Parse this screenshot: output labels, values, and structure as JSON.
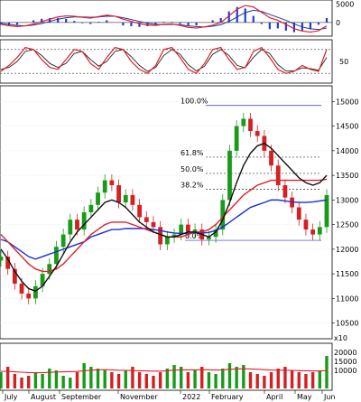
{
  "chart_data": {
    "type": "candlestick",
    "x_labels": [
      "July",
      "August",
      "September",
      "November",
      "2022",
      "February",
      "April",
      "May",
      "Jun"
    ],
    "panels": {
      "macd": {
        "y_ticks": [
          5000,
          0
        ],
        "macd_line": [
          -500,
          -900,
          -1100,
          -900,
          -400,
          200,
          900,
          1500,
          1800,
          1700,
          1400,
          1200,
          1600,
          2000,
          1700,
          900,
          300,
          -300,
          -700,
          -800,
          -500,
          -400,
          -800,
          -1300,
          -1500,
          -1200,
          -700,
          0,
          1800,
          3600,
          4600,
          4200,
          2800,
          1300,
          600,
          -500,
          -1700,
          -2300,
          -2600,
          -2200,
          -900
        ],
        "signal_line": [
          -200,
          -500,
          -800,
          -900,
          -700,
          -300,
          300,
          900,
          1300,
          1500,
          1500,
          1400,
          1500,
          1700,
          1700,
          1300,
          800,
          300,
          -200,
          -500,
          -600,
          -500,
          -600,
          -900,
          -1100,
          -1200,
          -1000,
          -600,
          300,
          1500,
          2700,
          3300,
          3000,
          2200,
          1400,
          600,
          -400,
          -1200,
          -1700,
          -1900,
          -1500
        ]
      },
      "stochastic": {
        "y_ticks": [
          50
        ],
        "levels": [
          80,
          20
        ],
        "k_line": [
          25,
          40,
          60,
          85,
          80,
          55,
          35,
          30,
          55,
          80,
          75,
          45,
          30,
          60,
          85,
          80,
          50,
          30,
          20,
          40,
          80,
          85,
          60,
          30,
          20,
          45,
          80,
          85,
          55,
          30,
          35,
          75,
          85,
          60,
          30,
          20,
          25,
          40,
          30,
          25,
          80
        ],
        "d_line": [
          30,
          35,
          50,
          75,
          80,
          65,
          45,
          35,
          45,
          70,
          75,
          55,
          38,
          50,
          75,
          80,
          62,
          40,
          25,
          35,
          65,
          80,
          68,
          42,
          26,
          38,
          68,
          80,
          65,
          40,
          34,
          60,
          80,
          70,
          42,
          26,
          26,
          34,
          32,
          28,
          60
        ]
      },
      "price": {
        "y_ticks": [
          15000,
          14500,
          14000,
          13500,
          13000,
          12500,
          12000,
          11500,
          11000,
          10500
        ],
        "ylim": [
          10200,
          15300
        ],
        "fib_levels": [
          {
            "label": "100.0%",
            "value": 14920
          },
          {
            "label": "61.8%",
            "value": 13870
          },
          {
            "label": "50.0%",
            "value": 13540
          },
          {
            "label": "38.2%",
            "value": 13220
          },
          {
            "label": "0.0%",
            "value": 12180
          }
        ],
        "closes": [
          11850,
          11600,
          11300,
          11100,
          11000,
          11250,
          11500,
          11700,
          12050,
          12300,
          12600,
          12400,
          12750,
          12900,
          13150,
          13400,
          13300,
          12950,
          13100,
          12900,
          12650,
          12550,
          12450,
          12100,
          12250,
          12300,
          12500,
          12350,
          12400,
          12200,
          12250,
          12400,
          13000,
          14000,
          14500,
          14650,
          14400,
          14300,
          14000,
          13700,
          13300,
          13050,
          12850,
          12600,
          12400,
          12300,
          12450,
          13100
        ],
        "ma_black": [
          12000,
          11800,
          11550,
          11350,
          11200,
          11150,
          11250,
          11450,
          11650,
          11900,
          12150,
          12350,
          12500,
          12650,
          12800,
          12950,
          13000,
          12950,
          12850,
          12700,
          12550,
          12450,
          12350,
          12300,
          12250,
          12250,
          12300,
          12350,
          12350,
          12300,
          12250,
          12350,
          12600,
          12950,
          13350,
          13700,
          13950,
          14100,
          14150,
          14050,
          13900,
          13750,
          13600,
          13450,
          13350,
          13300,
          13350,
          13500
        ],
        "ma_red": [
          12300,
          12150,
          12000,
          11850,
          11700,
          11600,
          11550,
          11550,
          11600,
          11700,
          11850,
          12000,
          12150,
          12300,
          12400,
          12500,
          12550,
          12550,
          12550,
          12500,
          12450,
          12400,
          12350,
          12300,
          12250,
          12250,
          12250,
          12300,
          12350,
          12350,
          12400,
          12500,
          12650,
          12800,
          12950,
          13100,
          13200,
          13300,
          13350,
          13400,
          13400,
          13400,
          13400,
          13400,
          13400,
          13400,
          13400,
          13420
        ],
        "ma_blue": [
          12200,
          12150,
          12050,
          11950,
          11850,
          11800,
          11850,
          11900,
          11950,
          12000,
          12050,
          12100,
          12150,
          12250,
          12300,
          12350,
          12400,
          12400,
          12420,
          12420,
          12420,
          12420,
          12400,
          12380,
          12350,
          12330,
          12320,
          12320,
          12330,
          12330,
          12340,
          12380,
          12450,
          12550,
          12650,
          12750,
          12850,
          12900,
          12950,
          13000,
          13000,
          12980,
          12960,
          12950,
          12950,
          12960,
          12980,
          13000
        ]
      },
      "volume": {
        "unit_label": "x10",
        "y_ticks": [
          20000,
          15000,
          10000
        ],
        "ylim": [
          0,
          24000
        ],
        "values": [
          9000,
          12000,
          8000,
          6000,
          7000,
          9000,
          8000,
          11000,
          10000,
          7000,
          6000,
          9000,
          14000,
          12000,
          11000,
          10000,
          9000,
          8000,
          10000,
          12000,
          9000,
          8000,
          7000,
          9000,
          11000,
          13000,
          12000,
          9000,
          10000,
          12000,
          9000,
          8000,
          11000,
          14000,
          12000,
          13000,
          9000,
          8000,
          7000,
          9000,
          11000,
          12000,
          10000,
          9000,
          8000,
          9000,
          10000,
          18000
        ],
        "ma_line": [
          9500,
          9400,
          9200,
          9000,
          8800,
          8700,
          8700,
          8900,
          9100,
          9200,
          9300,
          9400,
          9800,
          10100,
          10300,
          10400,
          10300,
          10100,
          10000,
          9900,
          9800,
          9700,
          9600,
          9600,
          9800,
          10100,
          10300,
          10300,
          10300,
          10400,
          10300,
          10200,
          10300,
          10600,
          10800,
          10900,
          10800,
          10600,
          10400,
          10200,
          10100,
          10100,
          10000,
          9900,
          9800,
          9700,
          9700,
          9900
        ]
      }
    }
  }
}
